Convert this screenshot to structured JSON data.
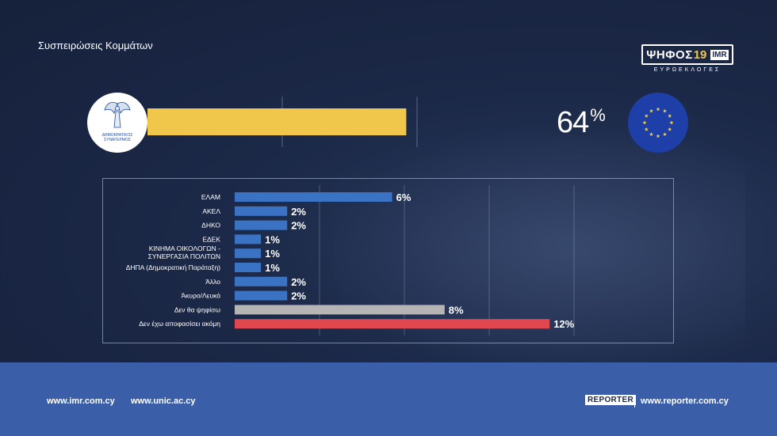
{
  "header": {
    "title": "Συσπειρώσεις Κομμάτων"
  },
  "brand": {
    "title": "ΨΗΦΟΣ",
    "year": "19",
    "logo": "IMR",
    "subtitle": "ΕΥΡΩΕΚΛΟΓΕΣ"
  },
  "party": {
    "logo_text_line1": "ΔΗΜΟΚΡΑΤΙΚΟΣ",
    "logo_text_line2": "ΣΥΝΑΓΕΡΜΟΣ",
    "logo_icon": "winged-victory-icon"
  },
  "flag_icon": "eu-flag-icon",
  "colors": {
    "main_bar": "#f0c74a",
    "blue_bar": "#3a73c4",
    "grey_bar": "#b5b5b5",
    "red_bar": "#e0474e",
    "footer": "#3a5ea7"
  },
  "chart_data": [
    {
      "type": "bar",
      "orientation": "horizontal",
      "values": [
        64
      ],
      "value_label": "64",
      "unit": "%",
      "xlim": [
        0,
        100
      ],
      "grid": true
    },
    {
      "type": "bar",
      "orientation": "horizontal",
      "categories": [
        "ΕΛΑΜ",
        "ΑΚΕΛ",
        "ΔΗΚΟ",
        "ΕΔΕΚ",
        "ΚΙΝΗΜΑ ΟΙΚΟΛΟΓΩΝ - ΣΥΝΕΡΓΑΣΙΑ ΠΟΛΙΤΩΝ",
        "ΔΗΠΑ (Δημοκρατική Παράταξη)",
        "Άλλο",
        "Άκυρο/Λευκό",
        "Δεν θα ψηφίσω",
        "Δεν έχω αποφασίσει ακόμη"
      ],
      "category_lines": [
        [
          "ΕΛΑΜ"
        ],
        [
          "ΑΚΕΛ"
        ],
        [
          "ΔΗΚΟ"
        ],
        [
          "ΕΔΕΚ"
        ],
        [
          "ΚΙΝΗΜΑ ΟΙΚΟΛΟΓΩΝ -",
          "ΣΥΝΕΡΓΑΣΙΑ ΠΟΛΙΤΩΝ"
        ],
        [
          "ΔΗΠΑ (Δημοκρατική Παράταξη)"
        ],
        [
          "Άλλο"
        ],
        [
          "Άκυρο/Λευκό"
        ],
        [
          "Δεν θα ψηφίσω"
        ],
        [
          "Δεν έχω αποφασίσει ακόμη"
        ]
      ],
      "values": [
        6,
        2,
        2,
        1,
        1,
        1,
        2,
        2,
        8,
        12
      ],
      "value_labels": [
        "6%",
        "2%",
        "2%",
        "1%",
        "1%",
        "1%",
        "2%",
        "2%",
        "8%",
        "12%"
      ],
      "bar_colors": [
        "#3a73c4",
        "#3a73c4",
        "#3a73c4",
        "#3a73c4",
        "#3a73c4",
        "#3a73c4",
        "#3a73c4",
        "#3a73c4",
        "#b5b5b5",
        "#e0474e"
      ],
      "grid": true
    }
  ],
  "footer": {
    "link_imr": "www.imr.com.cy",
    "link_unic": "www.unic.ac.cy",
    "reporter_logo": "REPORTER",
    "link_reporter": "www.reporter.com.cy"
  }
}
